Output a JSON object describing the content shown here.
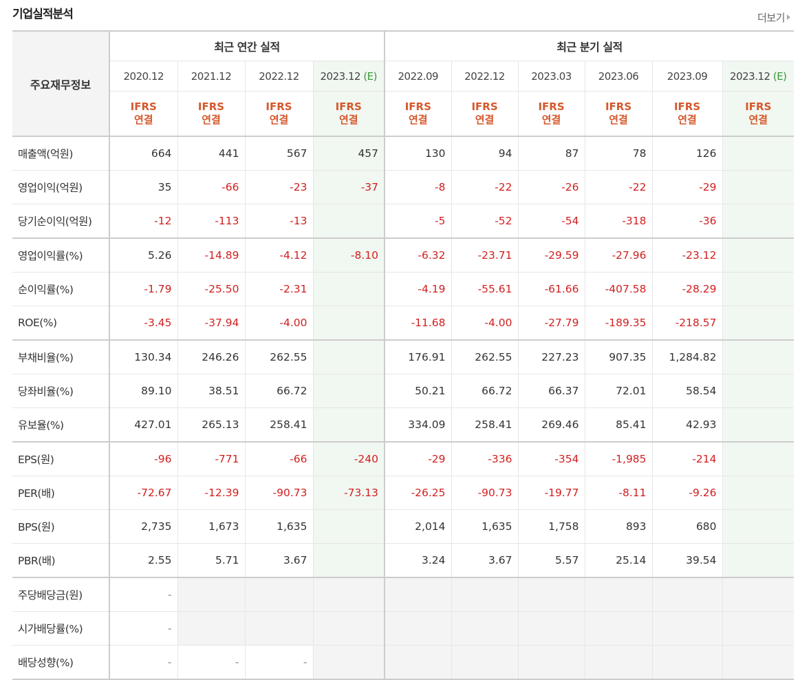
{
  "header": {
    "title": "기업실적분석",
    "more_label": "더보기"
  },
  "table": {
    "row_header": "주요재무정보",
    "groups": {
      "annual": "최근 연간 실적",
      "quarter": "최근 분기 실적"
    },
    "periods": [
      "2020.12",
      "2021.12",
      "2022.12",
      "2023.12",
      "2022.09",
      "2022.12",
      "2023.03",
      "2023.06",
      "2023.09",
      "2023.12"
    ],
    "estimate_mark": "(E)",
    "ifrs_line1": "IFRS",
    "ifrs_line2": "연결",
    "rows": [
      {
        "label": "매출액(억원)",
        "values": [
          "664",
          "441",
          "567",
          "457",
          "130",
          "94",
          "87",
          "78",
          "126",
          ""
        ]
      },
      {
        "label": "영업이익(억원)",
        "values": [
          "35",
          "-66",
          "-23",
          "-37",
          "-8",
          "-22",
          "-26",
          "-22",
          "-29",
          ""
        ]
      },
      {
        "label": "당기순이익(억원)",
        "values": [
          "-12",
          "-113",
          "-13",
          "",
          "-5",
          "-52",
          "-54",
          "-318",
          "-36",
          ""
        ]
      },
      {
        "label": "영업이익률(%)",
        "values": [
          "5.26",
          "-14.89",
          "-4.12",
          "-8.10",
          "-6.32",
          "-23.71",
          "-29.59",
          "-27.96",
          "-23.12",
          ""
        ]
      },
      {
        "label": "순이익률(%)",
        "values": [
          "-1.79",
          "-25.50",
          "-2.31",
          "",
          "-4.19",
          "-55.61",
          "-61.66",
          "-407.58",
          "-28.29",
          ""
        ]
      },
      {
        "label": "ROE(%)",
        "values": [
          "-3.45",
          "-37.94",
          "-4.00",
          "",
          "-11.68",
          "-4.00",
          "-27.79",
          "-189.35",
          "-218.57",
          ""
        ]
      },
      {
        "label": "부채비율(%)",
        "values": [
          "130.34",
          "246.26",
          "262.55",
          "",
          "176.91",
          "262.55",
          "227.23",
          "907.35",
          "1,284.82",
          ""
        ]
      },
      {
        "label": "당좌비율(%)",
        "values": [
          "89.10",
          "38.51",
          "66.72",
          "",
          "50.21",
          "66.72",
          "66.37",
          "72.01",
          "58.54",
          ""
        ]
      },
      {
        "label": "유보율(%)",
        "values": [
          "427.01",
          "265.13",
          "258.41",
          "",
          "334.09",
          "258.41",
          "269.46",
          "85.41",
          "42.93",
          ""
        ]
      },
      {
        "label": "EPS(원)",
        "values": [
          "-96",
          "-771",
          "-66",
          "-240",
          "-29",
          "-336",
          "-354",
          "-1,985",
          "-214",
          ""
        ]
      },
      {
        "label": "PER(배)",
        "values": [
          "-72.67",
          "-12.39",
          "-90.73",
          "-73.13",
          "-26.25",
          "-90.73",
          "-19.77",
          "-8.11",
          "-9.26",
          ""
        ]
      },
      {
        "label": "BPS(원)",
        "values": [
          "2,735",
          "1,673",
          "1,635",
          "",
          "2,014",
          "1,635",
          "1,758",
          "893",
          "680",
          ""
        ]
      },
      {
        "label": "PBR(배)",
        "values": [
          "2.55",
          "5.71",
          "3.67",
          "",
          "3.24",
          "3.67",
          "5.57",
          "25.14",
          "39.54",
          ""
        ]
      },
      {
        "label": "주당배당금(원)",
        "values": [
          "-",
          "",
          "",
          "",
          "",
          "",
          "",
          "",
          "",
          ""
        ]
      },
      {
        "label": "시가배당률(%)",
        "values": [
          "-",
          "",
          "",
          "",
          "",
          "",
          "",
          "",
          "",
          ""
        ]
      },
      {
        "label": "배당성향(%)",
        "values": [
          "-",
          "-",
          "-",
          "",
          "",
          "",
          "",
          "",
          "",
          ""
        ]
      }
    ]
  }
}
